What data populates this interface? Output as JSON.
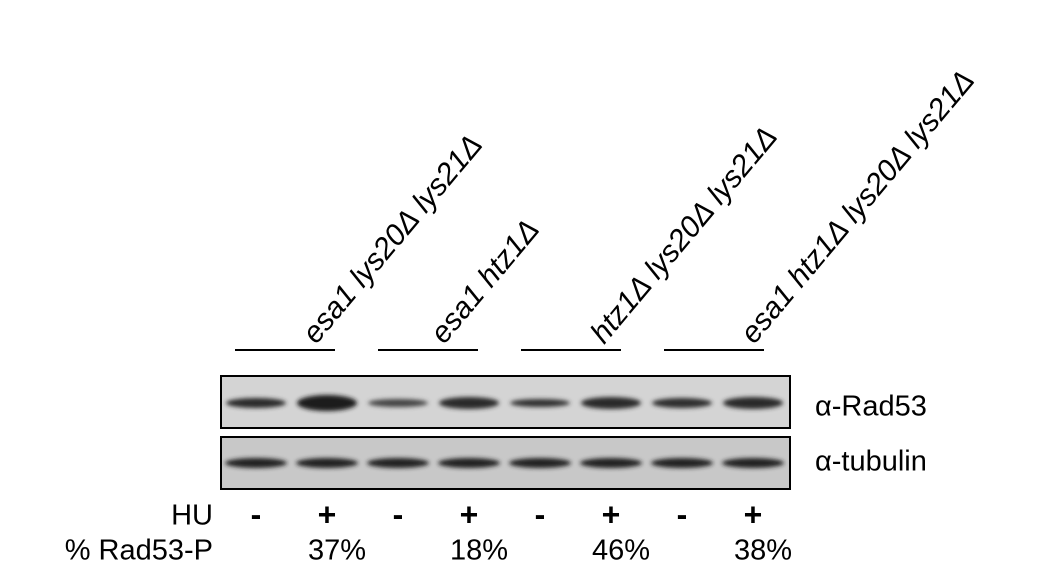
{
  "strains": [
    "esa1 lys20Δ lys21Δ",
    "esa1 htz1Δ",
    "htz1Δ lys20Δ lys21Δ",
    "esa1 htz1Δ lys20Δ lys21Δ"
  ],
  "blot_labels": [
    "α-Rad53",
    "α-tubulin"
  ],
  "row_labels": [
    "HU",
    "% Rad53-P"
  ],
  "hu": [
    "-",
    "+",
    "-",
    "+",
    "-",
    "+",
    "-",
    "+"
  ],
  "rad53_p": [
    "37%",
    "18%",
    "46%",
    "38%"
  ]
}
